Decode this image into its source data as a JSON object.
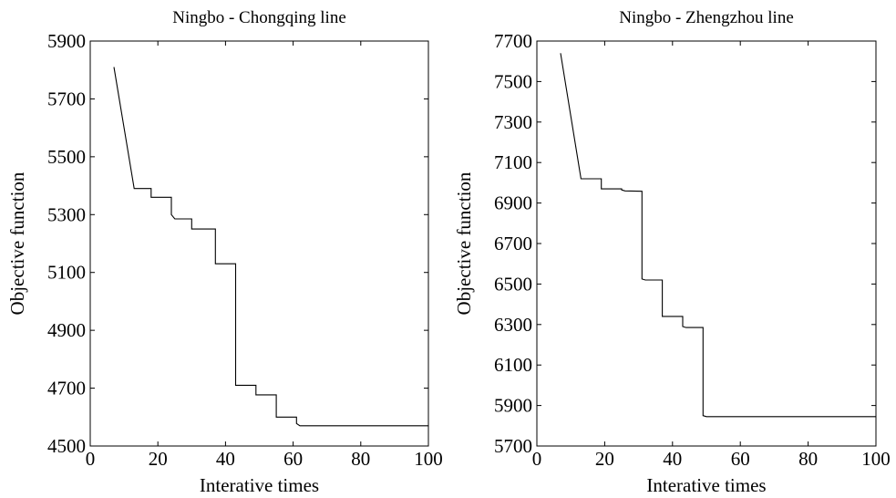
{
  "chart_data": [
    {
      "type": "line",
      "title": "Ningbo - Chongqing line",
      "xlabel": "Interative times",
      "ylabel": "Objective function",
      "xlim": [
        0,
        100
      ],
      "ylim": [
        4500,
        5900
      ],
      "xticks": [
        0,
        20,
        40,
        60,
        80,
        100
      ],
      "yticks": [
        4500,
        4700,
        4900,
        5100,
        5300,
        5500,
        5700,
        5900
      ],
      "grid": false,
      "series": [
        {
          "x": [
            7,
            13,
            13,
            18,
            18,
            24,
            24,
            25,
            25,
            30,
            30,
            37,
            37,
            43,
            43,
            49,
            49,
            55,
            55,
            61,
            61,
            62,
            62,
            100
          ],
          "y": [
            5810,
            5390,
            5390,
            5390,
            5360,
            5360,
            5300,
            5285,
            5285,
            5285,
            5250,
            5250,
            5130,
            5130,
            4710,
            4710,
            4677,
            4677,
            4600,
            4600,
            4578,
            4570,
            4570,
            4570
          ]
        }
      ]
    },
    {
      "type": "line",
      "title": "Ningbo - Zhengzhou line",
      "xlabel": "Interative times",
      "ylabel": "Objective function",
      "xlim": [
        0,
        100
      ],
      "ylim": [
        5700,
        7700
      ],
      "xticks": [
        0,
        20,
        40,
        60,
        80,
        100
      ],
      "yticks": [
        5700,
        5900,
        6100,
        6300,
        6500,
        6700,
        6900,
        7100,
        7300,
        7500,
        7700
      ],
      "grid": false,
      "series": [
        {
          "x": [
            7,
            13,
            13,
            19,
            19,
            25,
            25,
            26,
            26,
            31,
            31,
            32,
            32,
            37,
            37,
            43,
            43,
            44,
            44,
            49,
            49,
            50,
            50,
            100
          ],
          "y": [
            7640,
            7020,
            7020,
            7020,
            6970,
            6970,
            6965,
            6960,
            6960,
            6958,
            6525,
            6520,
            6520,
            6520,
            6340,
            6340,
            6290,
            6285,
            6285,
            6285,
            5850,
            5845,
            5845,
            5845
          ]
        }
      ]
    }
  ]
}
